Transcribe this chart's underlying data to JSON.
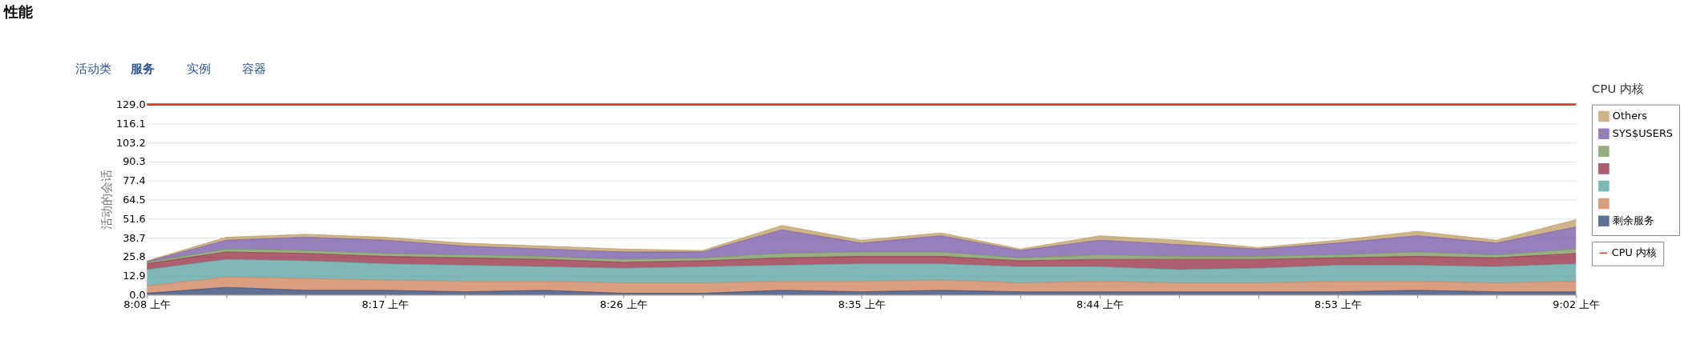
{
  "chart_data": {
    "type": "area",
    "stacked": true,
    "title": "性能",
    "ylabel": "活动的会话",
    "annotations": [
      "活动类",
      "服务",
      "实例",
      "容器",
      "CPU 内核"
    ],
    "categories": [
      "8:08 上午",
      null,
      null,
      "8:17 上午",
      null,
      null,
      "8:26 上午",
      null,
      null,
      "8:35 上午",
      null,
      null,
      "8:44 上午",
      null,
      null,
      "8:53 上午",
      null,
      null,
      "9:02 上午"
    ],
    "ylim": [
      0,
      129
    ],
    "yticks": [
      {
        "value": 0,
        "label": "0.0"
      },
      12.9,
      25.8,
      38.7,
      51.6,
      64.5,
      77.4,
      90.3,
      103.2,
      116.1,
      {
        "value": 129,
        "label": "129.0"
      }
    ],
    "grid": "y",
    "legend": "right",
    "series": [
      {
        "name": "剩余服务",
        "color": "#1c3468",
        "values": [
          1,
          5,
          3,
          3,
          2,
          3,
          1,
          1,
          3,
          2,
          3,
          2,
          2,
          2,
          2,
          2,
          3,
          2,
          2
        ]
      },
      {
        "name": null,
        "color": "#c97449",
        "values": [
          5,
          7,
          8,
          7,
          7,
          6,
          7,
          7,
          6,
          7,
          7,
          6,
          7,
          6,
          6,
          7,
          6,
          6,
          7
        ]
      },
      {
        "name": null,
        "color": "#4a9a98",
        "values": [
          11,
          12,
          12,
          11,
          11,
          10,
          10,
          11,
          11,
          12,
          11,
          11,
          10,
          9,
          10,
          11,
          11,
          11,
          12
        ]
      },
      {
        "name": null,
        "color": "#8b1a32",
        "values": [
          4,
          5,
          5,
          5,
          5,
          5,
          4,
          4,
          5,
          5,
          5,
          4,
          5,
          7,
          6,
          5,
          6,
          6,
          7
        ]
      },
      {
        "name": null,
        "color": "#6e8b50",
        "values": [
          1,
          2,
          2,
          2,
          2,
          2,
          2,
          2,
          3,
          3,
          3,
          2,
          3,
          2,
          2,
          2,
          3,
          2,
          3
        ]
      },
      {
        "name": "SYS$USERS",
        "color": "#6a4a9c",
        "values": [
          0.5,
          6,
          9,
          9,
          6,
          5,
          5,
          4,
          16,
          6,
          11,
          5,
          10,
          8,
          5,
          8,
          11,
          8,
          15
        ]
      },
      {
        "name": "Others",
        "color": "#b8955a",
        "values": [
          0.5,
          2,
          2,
          2,
          2,
          2,
          2,
          1,
          3,
          2,
          2,
          1,
          3,
          3,
          1,
          2,
          3,
          2,
          5
        ]
      },
      {
        "name": "CPU 内核",
        "type": "line",
        "color": "#d63a2b",
        "values": [
          129,
          129,
          129,
          129,
          129,
          129,
          129,
          129,
          129,
          129,
          129,
          129,
          129,
          129,
          129,
          129,
          129,
          129,
          129
        ]
      }
    ]
  }
}
